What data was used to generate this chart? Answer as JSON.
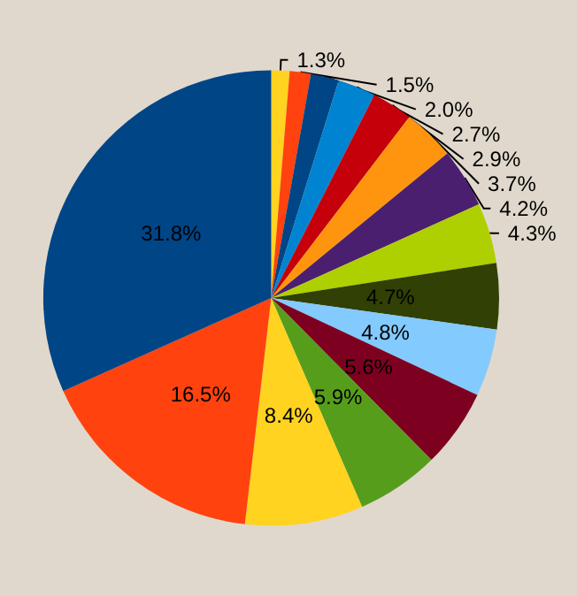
{
  "chart_data": {
    "type": "pie",
    "categories": [
      null,
      null,
      null,
      null,
      null,
      null,
      null,
      null,
      null,
      null,
      null,
      null,
      null,
      null,
      null
    ],
    "values": [
      1.3,
      1.5,
      2.0,
      2.7,
      2.9,
      3.7,
      4.2,
      4.3,
      4.7,
      4.8,
      5.6,
      5.9,
      8.4,
      16.5,
      31.8
    ],
    "value_labels": [
      "1.3%",
      "1.5%",
      "2.0%",
      "2.7%",
      "2.9%",
      "3.7%",
      "4.2%",
      "4.3%",
      "4.7%",
      "4.8%",
      "5.6%",
      "5.9%",
      "8.4%",
      "16.5%",
      "31.8%"
    ],
    "colors": [
      "#ffd320",
      "#ff420e",
      "#004586",
      "#0084d1",
      "#c5000b",
      "#ff950e",
      "#4b1f6f",
      "#aecf00",
      "#314004",
      "#83caff",
      "#7e0021",
      "#579d1c",
      "#ffd320",
      "#ff420e",
      "#004586"
    ]
  }
}
